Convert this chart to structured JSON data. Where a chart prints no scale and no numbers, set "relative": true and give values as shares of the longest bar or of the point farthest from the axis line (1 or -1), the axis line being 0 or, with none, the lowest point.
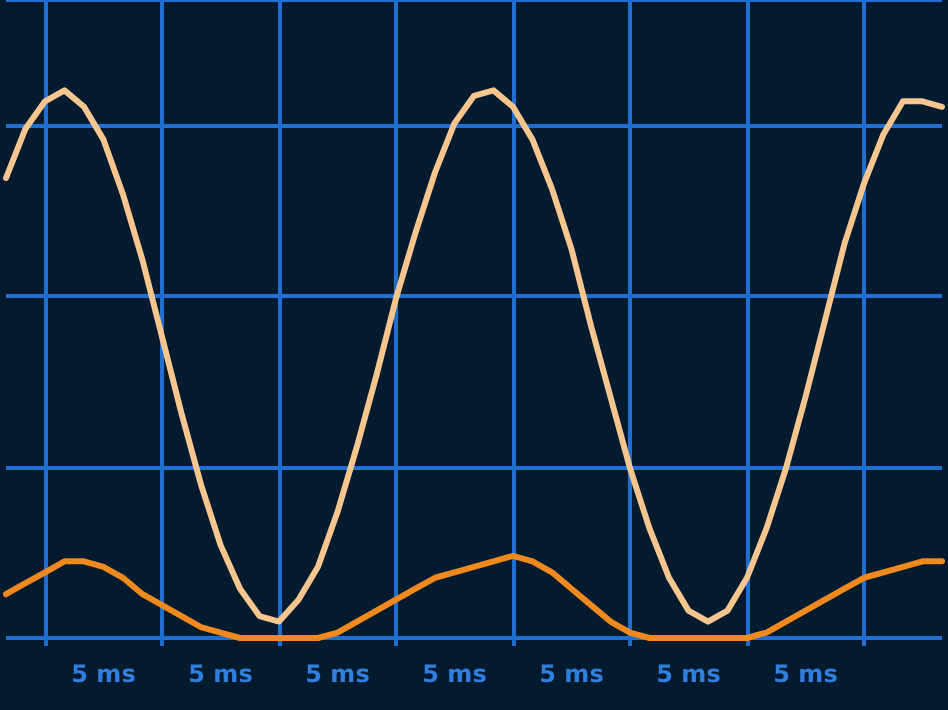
{
  "chart_data": {
    "type": "line",
    "relative": true,
    "categories": [
      null,
      null,
      null,
      null,
      null,
      "5 ms",
      null,
      null,
      null,
      null,
      null,
      "5 ms",
      null,
      null,
      null,
      null,
      null,
      "5 ms",
      null,
      null,
      null,
      null,
      null,
      "5 ms",
      null,
      null,
      null,
      null,
      null,
      "5 ms",
      null,
      null,
      null,
      null,
      null,
      "5 ms",
      null,
      null,
      null,
      null,
      null,
      "5 ms",
      null,
      null,
      null,
      null,
      null,
      null,
      null
    ],
    "series": [
      {
        "color": "#f7c68e",
        "values": [
          0.84,
          0.93,
          0.98,
          1.0,
          0.97,
          0.91,
          0.81,
          0.69,
          0.55,
          0.41,
          0.28,
          0.17,
          0.09,
          0.04,
          0.03,
          0.07,
          0.13,
          0.23,
          0.35,
          0.48,
          0.62,
          0.74,
          0.85,
          0.94,
          0.99,
          1.0,
          0.97,
          0.91,
          0.82,
          0.71,
          0.57,
          0.44,
          0.31,
          0.2,
          0.11,
          0.05,
          0.03,
          0.05,
          0.11,
          0.2,
          0.31,
          0.44,
          0.58,
          0.72,
          0.83,
          0.92,
          0.98,
          0.98,
          0.97
        ]
      },
      {
        "color": "#f08a1f",
        "values": [
          0.08,
          0.1,
          0.12,
          0.14,
          0.14,
          0.13,
          0.11,
          0.08,
          0.06,
          0.04,
          0.02,
          0.01,
          0,
          0,
          0,
          0,
          0,
          0.01,
          0.03,
          0.05,
          0.07,
          0.09,
          0.11,
          0.12,
          0.13,
          0.14,
          0.15,
          0.14,
          0.12,
          0.09,
          0.06,
          0.03,
          0.01,
          0,
          0,
          0,
          0,
          0,
          0,
          0.01,
          0.03,
          0.05,
          0.07,
          0.09,
          0.11,
          0.12,
          0.13,
          0.14,
          0.14
        ]
      }
    ],
    "grid": true,
    "marker": "none",
    "line_style": "solid"
  }
}
